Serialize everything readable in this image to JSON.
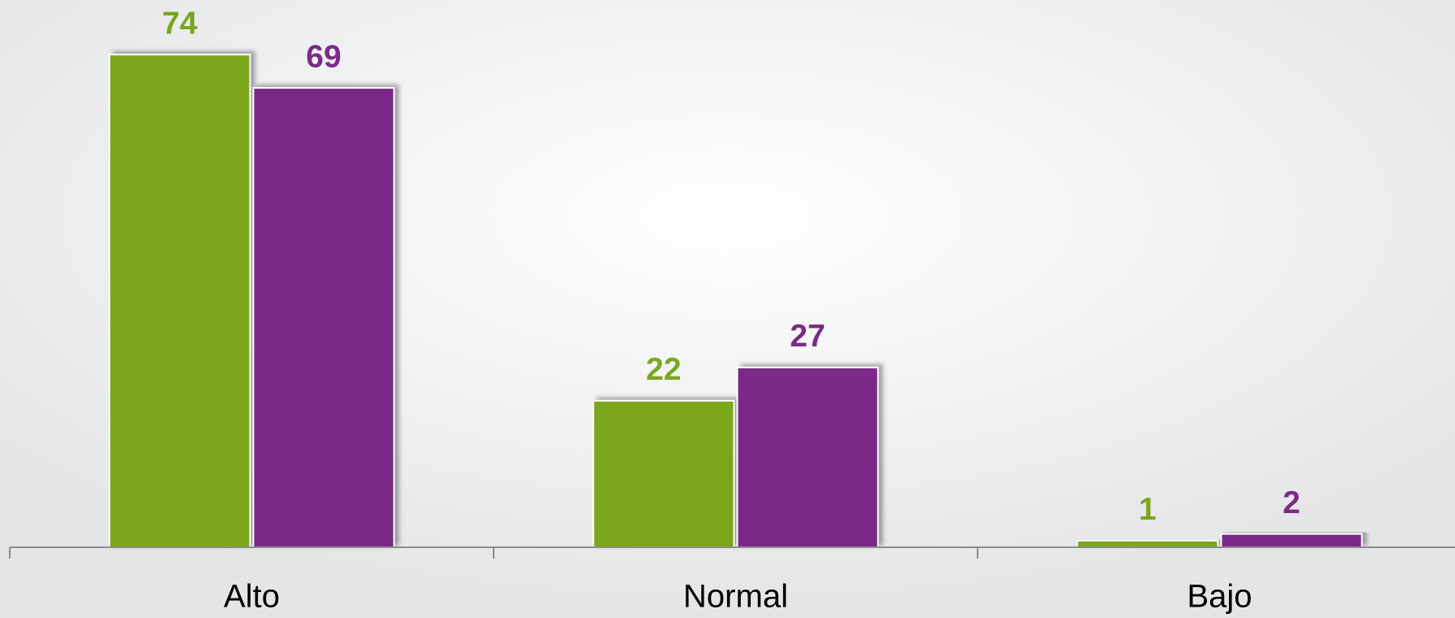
{
  "chart_data": {
    "type": "bar",
    "categories": [
      "Alto",
      "Normal",
      "Bajo"
    ],
    "series": [
      {
        "color": "#7ba61e",
        "values": [
          74,
          22,
          1
        ]
      },
      {
        "color": "#7a2b86",
        "values": [
          69,
          27,
          2
        ]
      }
    ],
    "ylim": [
      0,
      80
    ]
  }
}
